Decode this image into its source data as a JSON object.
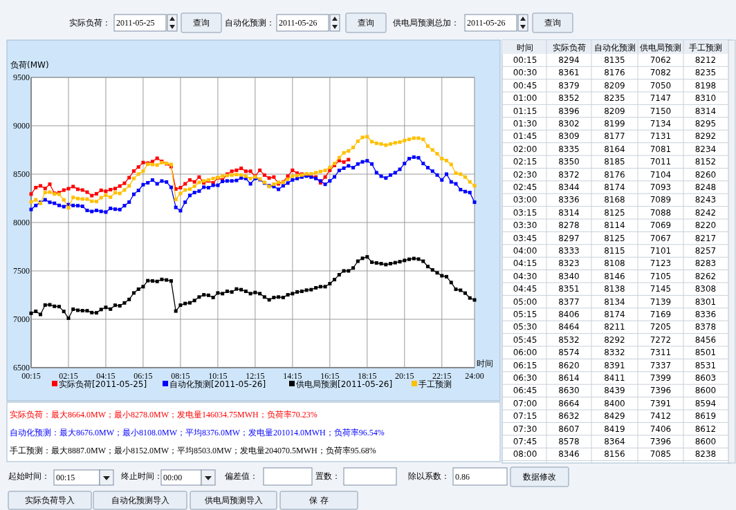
{
  "chart_data": {
    "type": "line",
    "ylabel": "负荷(MW)",
    "xlabel": "时间",
    "categories": [
      "00:15",
      null,
      null,
      null,
      null,
      null,
      null,
      null,
      "02:15",
      null,
      null,
      null,
      null,
      null,
      null,
      null,
      "04:15",
      null,
      null,
      null,
      null,
      null,
      null,
      null,
      "06:15",
      null,
      null,
      null,
      null,
      null,
      null,
      null,
      "08:15",
      null,
      null,
      null,
      null,
      null,
      null,
      null,
      "10:15",
      null,
      null,
      null,
      null,
      null,
      null,
      null,
      "12:15",
      null,
      null,
      null,
      null,
      null,
      null,
      null,
      "14:15",
      null,
      null,
      null,
      null,
      null,
      null,
      null,
      "16:15",
      null,
      null,
      null,
      null,
      null,
      null,
      null,
      "18:15",
      null,
      null,
      null,
      null,
      null,
      null,
      null,
      "20:15",
      null,
      null,
      null,
      null,
      null,
      null,
      null,
      "22:15",
      null,
      null,
      null,
      null,
      null,
      null,
      "24:00"
    ],
    "series": [
      {
        "name": "实际负荷[2011-05-25]",
        "color": "#ff0000",
        "values": [
          8294,
          8361,
          8379,
          8352,
          8396,
          8302,
          8309,
          8335,
          8350,
          8372,
          8344,
          8336,
          8314,
          8278,
          8297,
          8333,
          8323,
          8340,
          8351,
          8377,
          8406,
          8464,
          8532,
          8574,
          8620,
          8614,
          8630,
          8664,
          8632,
          8607,
          8578,
          8346,
          8360,
          8400,
          8440,
          8420,
          8470,
          8410,
          8430,
          8410,
          8460,
          8440,
          8500,
          8530,
          8540,
          8560,
          8530,
          8530,
          8480,
          8540,
          8490,
          8460,
          8470,
          8400,
          8420,
          8480,
          8540,
          8510,
          8500,
          8490,
          8480,
          8470,
          8410,
          8470,
          8540,
          8590,
          8640,
          8625,
          8650,
          null,
          null,
          null,
          null,
          null,
          null,
          null,
          null,
          null,
          null,
          null,
          null,
          null,
          null,
          null,
          null,
          null,
          null,
          null,
          null,
          null,
          null,
          null,
          null,
          null,
          null,
          null
        ]
      },
      {
        "name": "自动化预测[2011-05-26]",
        "color": "#0000ff",
        "values": [
          8135,
          8176,
          8209,
          8235,
          8209,
          8199,
          8177,
          8164,
          8185,
          8176,
          8174,
          8168,
          8125,
          8114,
          8125,
          8115,
          8108,
          8146,
          8138,
          8134,
          8174,
          8211,
          8292,
          8332,
          8391,
          8411,
          8439,
          8400,
          8429,
          8419,
          8364,
          8156,
          8122,
          8210,
          8280,
          8310,
          8325,
          8365,
          8360,
          8385,
          8385,
          8425,
          8430,
          8430,
          8435,
          8460,
          8455,
          8400,
          8455,
          8443,
          8408,
          8380,
          8372,
          8343,
          8380,
          8408,
          8440,
          8455,
          8470,
          8480,
          8470,
          8455,
          8430,
          8395,
          8430,
          8472,
          8538,
          8562,
          8586,
          8567,
          8605,
          8627,
          8638,
          8605,
          8515,
          8479,
          8460,
          8491,
          8515,
          8550,
          8610,
          8660,
          8676,
          8669,
          8610,
          8567,
          8531,
          8491,
          8440,
          8500,
          8420,
          8400,
          8340,
          8320,
          8310,
          8210
        ]
      },
      {
        "name": "供电局预测[2011-05-26]",
        "color": "#000000",
        "values": [
          7062,
          7082,
          7050,
          7147,
          7150,
          7134,
          7131,
          7081,
          7011,
          7104,
          7093,
          7089,
          7088,
          7069,
          7067,
          7101,
          7123,
          7105,
          7145,
          7139,
          7169,
          7205,
          7272,
          7311,
          7337,
          7399,
          7396,
          7391,
          7412,
          7406,
          7396,
          7085,
          7146,
          7163,
          7170,
          7194,
          7230,
          7253,
          7248,
          7225,
          7272,
          7265,
          7289,
          7282,
          7313,
          7306,
          7289,
          7265,
          7277,
          7265,
          7230,
          7201,
          7225,
          7230,
          7225,
          7253,
          7265,
          7282,
          7289,
          7301,
          7306,
          7325,
          7337,
          7337,
          7368,
          7410,
          7460,
          7500,
          7500,
          7530,
          7600,
          7630,
          7645,
          7590,
          7582,
          7575,
          7565,
          7575,
          7585,
          7595,
          7608,
          7620,
          7628,
          7622,
          7600,
          7545,
          7510,
          7480,
          7450,
          7440,
          7380,
          7310,
          7300,
          7270,
          7220,
          7200
        ]
      },
      {
        "name": "手工预测",
        "color": "#ffc000",
        "values": [
          8212,
          8235,
          8198,
          8310,
          8314,
          8295,
          8292,
          8234,
          8152,
          8260,
          8248,
          8243,
          8242,
          8220,
          8217,
          8257,
          8283,
          8262,
          8308,
          8301,
          8336,
          8378,
          8456,
          8501,
          8531,
          8603,
          8600,
          8594,
          8619,
          8612,
          8600,
          8238,
          8300,
          8336,
          8345,
          8375,
          8415,
          8430,
          8440,
          8455,
          8465,
          8480,
          8486,
          8491,
          8496,
          8491,
          8479,
          8455,
          8472,
          8450,
          8415,
          8372,
          8396,
          8415,
          8415,
          8448,
          8479,
          8486,
          8491,
          8503,
          8503,
          8515,
          8527,
          8538,
          8570,
          8610,
          8670,
          8720,
          8740,
          8776,
          8840,
          8880,
          8887,
          8836,
          8819,
          8812,
          8800,
          8812,
          8824,
          8831,
          8848,
          8860,
          8872,
          8872,
          8860,
          8790,
          8750,
          8710,
          8660,
          8640,
          8600,
          8510,
          8500,
          8470,
          8420,
          8380
        ]
      }
    ],
    "ylim": [
      6500,
      9500
    ],
    "yticks": [
      6500,
      7000,
      7500,
      8000,
      8500,
      9000,
      9500
    ],
    "grid": true,
    "legend": "bottom",
    "marker": "square",
    "line_style": "solid",
    "annotations": [
      "实际负荷：最大8664.0MW；最小8278.0MW；发电量146034.75MWH；负荷率70.23%",
      "自动化预测：最大8676.0MW；最小8108.0MW；平均8376.0MW；发电量201014.0MWH；负荷率96.54%",
      "手工预测：最大8887.0MW；最小8152.0MW；平均8503.0MW；发电量204070.5MWH；负荷率95.68%",
      "实际负荷：",
      "2011-05-25",
      "查询",
      "自动化预测：",
      "2011-05-26",
      "查询",
      "供电局预测总加：",
      "2011-05-26",
      "查询",
      "起始时间：",
      "00:15",
      "终止时间：",
      "00:00",
      "偏差值：",
      "置数：",
      "除以系数：",
      "0.86",
      "数据修改",
      "实际负荷导入",
      "自动化预测导入",
      "供电局预测导入",
      "保 存",
      "时间",
      "实际负荷",
      "自动化预测",
      "供电局预测",
      "手工预测",
      "00:15",
      "8294",
      "8135",
      "7062",
      "8212",
      "00:30",
      "8361",
      "8176",
      "7082",
      "8235",
      "00:45",
      "8379",
      "8209",
      "7050",
      "8198",
      "01:00",
      "8352",
      "8235",
      "7147",
      "8310",
      "01:15",
      "8396",
      "8209",
      "7150",
      "8314",
      "01:30",
      "8302",
      "8199",
      "7134",
      "8295",
      "01:45",
      "8309",
      "8177",
      "7131",
      "8292",
      "02:00",
      "8335",
      "8164",
      "7081",
      "8234",
      "02:15",
      "8350",
      "8185",
      "7011",
      "8152",
      "02:30",
      "8372",
      "8176",
      "7104",
      "8260",
      "02:45",
      "8344",
      "8174",
      "7093",
      "8248",
      "03:00",
      "8336",
      "8168",
      "7089",
      "8243",
      "03:15",
      "8314",
      "8125",
      "7088",
      "8242",
      "03:30",
      "8278",
      "8114",
      "7069",
      "8220",
      "03:45",
      "8297",
      "8125",
      "7067",
      "8217",
      "04:00",
      "8333",
      "8115",
      "7101",
      "8257",
      "04:15",
      "8323",
      "8108",
      "7123",
      "8283",
      "04:30",
      "8340",
      "8146",
      "7105",
      "8262",
      "04:45",
      "8351",
      "8138",
      "7145",
      "8308",
      "05:00",
      "8377",
      "8134",
      "7139",
      "8301",
      "05:15",
      "8406",
      "8174",
      "7169",
      "8336",
      "05:30",
      "8464",
      "8211",
      "7205",
      "8378",
      "05:45",
      "8532",
      "8292",
      "7272",
      "8456",
      "06:00",
      "8574",
      "8332",
      "7311",
      "8501",
      "06:15",
      "8620",
      "8391",
      "7337",
      "8531",
      "06:30",
      "8614",
      "8411",
      "7399",
      "8603",
      "06:45",
      "8630",
      "8439",
      "7396",
      "8600",
      "07:00",
      "8664",
      "8400",
      "7391",
      "8594",
      "07:15",
      "8632",
      "8429",
      "7412",
      "8619",
      "07:30",
      "8607",
      "8419",
      "7406",
      "8612",
      "07:45",
      "8578",
      "8364",
      "7396",
      "8600",
      "08:00",
      "8346",
      "8156",
      "7085",
      "8238"
    ]
  }
}
